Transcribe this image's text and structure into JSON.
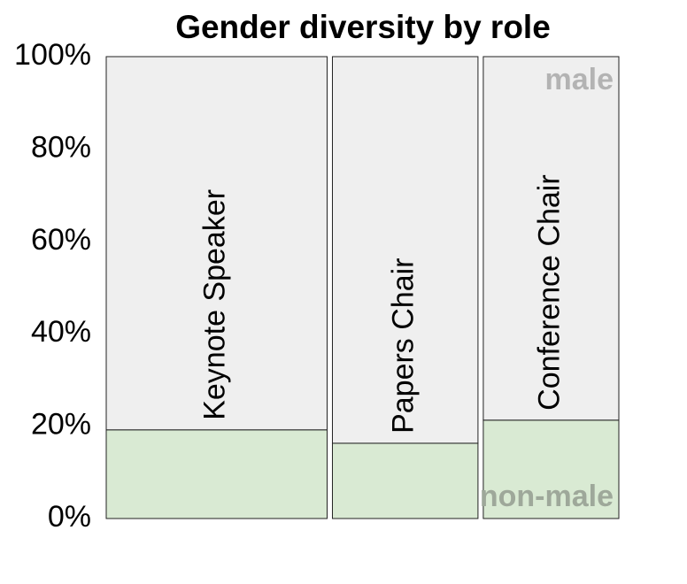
{
  "chart_data": {
    "type": "mosaic",
    "title": "Gender diversity by role",
    "categories": [
      "Keynote Speaker",
      "Papers Chair",
      "Conference Chair"
    ],
    "widths": [
      44,
      29,
      27
    ],
    "series": [
      {
        "name": "non-male",
        "color": "#d9ead3",
        "label_color": "#9ea89a",
        "values": [
          19.2,
          16.3,
          21.3
        ]
      },
      {
        "name": "male",
        "color": "#efefef",
        "label_color": "#b3b3b3",
        "values": [
          80.8,
          83.7,
          78.7
        ]
      }
    ],
    "ylim": [
      0,
      100
    ],
    "yticks": [
      {
        "value": 0,
        "label": "0%"
      },
      {
        "value": 20,
        "label": "20%"
      },
      {
        "value": 40,
        "label": "40%"
      },
      {
        "value": 60,
        "label": "60%"
      },
      {
        "value": 80,
        "label": "80%"
      },
      {
        "value": 100,
        "label": "100%"
      }
    ]
  }
}
